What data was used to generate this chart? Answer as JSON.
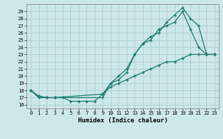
{
  "title": "",
  "xlabel": "Humidex (Indice chaleur)",
  "ylabel": "",
  "background_color": "#cde8e8",
  "grid_color": "#b0d0d0",
  "line_color": "#1a7a6e",
  "xlim": [
    -0.5,
    23.5
  ],
  "ylim": [
    15.5,
    30.0
  ],
  "xticks": [
    0,
    1,
    2,
    3,
    4,
    5,
    6,
    7,
    8,
    9,
    10,
    11,
    12,
    13,
    14,
    15,
    16,
    17,
    18,
    19,
    20,
    21,
    22,
    23
  ],
  "yticks": [
    16,
    17,
    18,
    19,
    20,
    21,
    22,
    23,
    24,
    25,
    26,
    27,
    28,
    29
  ],
  "line1_x": [
    0,
    1,
    2,
    3,
    4,
    5,
    6,
    7,
    8,
    9,
    10,
    11,
    12,
    13,
    14,
    15,
    16,
    17,
    18,
    19,
    20,
    21,
    22,
    23
  ],
  "line1_y": [
    18,
    17,
    17,
    17,
    17,
    16.5,
    16.5,
    16.5,
    16.5,
    17.5,
    18.5,
    19,
    19.5,
    20,
    20.5,
    21,
    21.5,
    22,
    22,
    22.5,
    23,
    23,
    23,
    23
  ],
  "line2_x": [
    0,
    1,
    2,
    3,
    9,
    10,
    11,
    12,
    13,
    14,
    15,
    16,
    17,
    18,
    19,
    20,
    21,
    22,
    23
  ],
  "line2_y": [
    18,
    17.2,
    17,
    17,
    17.5,
    19,
    19.5,
    20.5,
    23,
    24.5,
    25,
    26.5,
    27,
    27.5,
    29,
    26.5,
    24,
    23,
    23
  ],
  "line3_x": [
    0,
    1,
    2,
    3,
    9,
    10,
    11,
    12,
    13,
    14,
    15,
    16,
    17,
    18,
    19,
    20,
    21,
    22,
    23
  ],
  "line3_y": [
    18,
    17.2,
    17,
    17,
    17,
    19,
    20,
    21,
    23,
    24.5,
    25.5,
    26,
    27.5,
    28.5,
    29.5,
    28,
    27,
    23,
    23
  ]
}
